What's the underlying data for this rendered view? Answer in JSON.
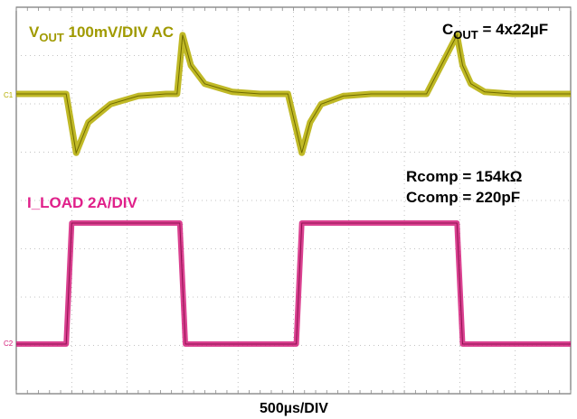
{
  "chart_data": {
    "type": "line",
    "title": "",
    "xlabel": "500µs/DIV",
    "ylabel": "",
    "time_per_div_us": 500,
    "x_divisions": 10,
    "y_divisions": 8,
    "grid": true,
    "labels": {
      "vout_main": "V",
      "vout_sub": "OUT",
      "vout_rest": " 100mV/DIV AC",
      "cout_main": "C",
      "cout_sub": "OUT",
      "cout_rest": " = 4x22µF",
      "rcomp": "Rcomp = 154kΩ",
      "ccomp": "Ccomp = 220pF",
      "iload": "I_LOAD 2A/DIV",
      "ch1_marker": "C1",
      "ch2_marker": "C2"
    },
    "series": [
      {
        "name": "VOUT",
        "color": "#b5ad00",
        "x": [
          0,
          0.9,
          1.08,
          1.3,
          1.7,
          2.2,
          2.7,
          2.9,
          3.0,
          3.15,
          3.4,
          3.9,
          4.4,
          4.9,
          5.15,
          5.3,
          5.5,
          5.9,
          6.4,
          6.9,
          7.4,
          7.95,
          8.05,
          8.2,
          8.45,
          8.95,
          9.5,
          10
        ],
        "y": [
          0,
          0,
          -1.45,
          -0.7,
          -0.25,
          -0.05,
          0,
          0,
          1.45,
          0.7,
          0.25,
          0.05,
          0,
          0,
          -1.45,
          -0.7,
          -0.25,
          -0.05,
          0,
          0,
          0,
          1.45,
          0.7,
          0.25,
          0.05,
          0,
          0,
          0
        ],
        "unit": "div"
      },
      {
        "name": "I_LOAD",
        "color": "#d4207c",
        "x": [
          0,
          0.9,
          1.0,
          2.95,
          3.05,
          5.05,
          5.15,
          7.95,
          8.05,
          10
        ],
        "y": [
          0,
          0,
          4,
          4,
          0,
          0,
          4,
          4,
          0,
          0
        ],
        "unit": "div"
      }
    ]
  }
}
